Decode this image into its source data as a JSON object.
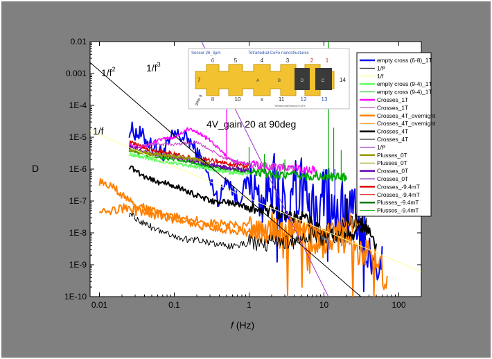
{
  "chart_data": {
    "type": "line",
    "title": "",
    "xlabel_italic": "f",
    "xlabel_rest": " (Hz)",
    "ylabel": "D",
    "xscale": "log",
    "yscale": "log",
    "xlim": [
      0.0075,
      200
    ],
    "ylim": [
      1e-10,
      0.01
    ],
    "x_ticks": [
      0.01,
      0.1,
      1,
      10,
      100
    ],
    "x_tick_labels": [
      "0.01",
      "0.1",
      "1",
      "10",
      "100"
    ],
    "y_ticks": [
      0.01,
      0.001,
      0.0001,
      1e-05,
      1e-06,
      1e-07,
      1e-08,
      1e-09,
      1e-10
    ],
    "y_tick_labels": [
      "0.01",
      "0.001",
      "1E-4",
      "1E-5",
      "1E-6",
      "1E-7",
      "1E-8",
      "1E-9",
      "1E-10"
    ],
    "annotation": "4V_gain 20 at 90deg",
    "guide_labels": {
      "one_over_f": "1/f",
      "one_over_f2_base": "1/f",
      "one_over_f2_exp": "2",
      "one_over_f3_base": "1/f",
      "one_over_f3_exp": "3"
    },
    "guides": [
      {
        "name": "1/f",
        "x": [
          0.0075,
          200
        ],
        "y": [
          1.6e-05,
          6e-10
        ],
        "color": "#ffff99"
      },
      {
        "name": "1/f2",
        "x": [
          0.0075,
          40
        ],
        "y": [
          0.0022,
          6e-11
        ],
        "color": "#000000"
      },
      {
        "name": "1/f3",
        "x": [
          0.2,
          12
        ],
        "y": [
          0.02,
          8e-11
        ],
        "color": "#9933cc"
      }
    ],
    "series": [
      {
        "name": "empty cross (6-8)_1T",
        "color": "#0000ee",
        "width": 2,
        "x": [
          0.025,
          0.035,
          0.05,
          0.07,
          0.1,
          0.13,
          0.16,
          0.2,
          0.25,
          0.3,
          0.4,
          0.5,
          0.7,
          1,
          1.5,
          2,
          3,
          5,
          7,
          10,
          14,
          20,
          30,
          40,
          50,
          60
        ],
        "y": [
          1.8e-05,
          1.2e-05,
          6e-06,
          3e-06,
          1.2e-05,
          1e-05,
          8e-06,
          3e-06,
          1.5e-06,
          4e-07,
          1e-07,
          6e-07,
          1e-07,
          5e-07,
          8e-08,
          4e-07,
          6e-08,
          3e-07,
          5e-08,
          2e-07,
          5e-08,
          8e-08,
          1e-08,
          5e-09,
          1e-09,
          5e-10
        ],
        "noise": 0.55,
        "hf_drop": 2.5,
        "spike_x": [
          10,
          14
        ],
        "spike_y": [
          1e-06,
          1e-06
        ]
      },
      {
        "name": "Crosses_1T",
        "color": "#ff00ff",
        "width": 1.5,
        "x": [
          0.025,
          0.04,
          0.06,
          0.1,
          0.15,
          0.2,
          0.3,
          0.5,
          0.7,
          1,
          2,
          3,
          5,
          8
        ],
        "y": [
          6e-06,
          5e-06,
          8e-06,
          1e-05,
          1.8e-05,
          1.5e-05,
          8e-06,
          2.5e-06,
          1.5e-06,
          1.5e-06,
          1.2e-06,
          1.1e-06,
          1e-06,
          9e-07
        ],
        "noise": 0.12,
        "spike_x": [
          0.5
        ],
        "spike_y": [
          0.001
        ]
      },
      {
        "name": "Crosses_1T (b)",
        "color": "#cc44cc",
        "width": 1,
        "x": [
          0.025,
          0.05,
          0.1,
          0.2,
          0.3,
          0.5,
          1,
          2,
          4
        ],
        "y": [
          5e-06,
          6e-06,
          6e-06,
          7e-06,
          4e-06,
          2e-06,
          1.4e-06,
          1.2e-06,
          1e-06
        ],
        "noise": 0.1
      },
      {
        "name": "Plusses_-9.4mT",
        "color": "#00aa00",
        "width": 2,
        "x": [
          0.025,
          0.05,
          0.1,
          0.2,
          0.3,
          0.5,
          1,
          2,
          3,
          5,
          8,
          10,
          14,
          20
        ],
        "y": [
          4e-06,
          2.5e-06,
          2e-06,
          1.5e-06,
          1.2e-06,
          1e-06,
          8e-07,
          7e-07,
          6.5e-07,
          6e-07,
          6e-07,
          5.5e-07,
          5.5e-07,
          6e-07
        ],
        "noise": 0.12,
        "spike_x": [
          0.7,
          1,
          1.6,
          3,
          11.5,
          13.5,
          17
        ],
        "spike_y": [
          2e-06,
          5e-06,
          3e-06,
          2e-06,
          0.012,
          2e-05,
          4e-06
        ]
      },
      {
        "name": "empty cross (9-4)_1T",
        "color": "#66ff66",
        "width": 1.5,
        "x": [
          0.025,
          0.05,
          0.1,
          0.2,
          0.3,
          0.5,
          1
        ],
        "y": [
          3e-06,
          2e-06,
          1.5e-06,
          1.2e-06,
          1e-06,
          8e-07,
          7e-07
        ],
        "noise": 0.12
      },
      {
        "name": "Crosses_-9.4mT",
        "color": "#dd0000",
        "width": 1.2,
        "x": [
          0.025,
          0.05,
          0.1,
          0.2,
          0.3,
          0.5,
          1
        ],
        "y": [
          7e-06,
          4e-06,
          3e-06,
          2e-06,
          2e-06,
          1.5e-06,
          1.2e-06
        ],
        "noise": 0.15
      },
      {
        "name": "Crosses_0T",
        "color": "#6600aa",
        "width": 1.2,
        "x": [
          0.025,
          0.05,
          0.1,
          0.2,
          0.3,
          0.5,
          1
        ],
        "y": [
          5e-06,
          3e-06,
          2.5e-06,
          1.8e-06,
          1.4e-06,
          1.1e-06,
          9e-07
        ],
        "noise": 0.15
      },
      {
        "name": "Plusses_0T",
        "color": "#999900",
        "width": 1.2,
        "x": [
          0.025,
          0.05,
          0.1,
          0.2,
          0.3
        ],
        "y": [
          4e-06,
          3e-06,
          2.5e-06,
          2e-06,
          1.5e-06
        ],
        "noise": 0.12
      },
      {
        "name": "Crosses_4T",
        "color": "#000000",
        "width": 2,
        "x": [
          0.025,
          0.04,
          0.06,
          0.1,
          0.15,
          0.2,
          0.3,
          0.5,
          0.7,
          1,
          2,
          3,
          5,
          7,
          10,
          15,
          20,
          25,
          30,
          40,
          50
        ],
        "y": [
          1.2e-06,
          6e-07,
          4e-07,
          3e-07,
          2e-07,
          1.5e-07,
          1e-07,
          9e-08,
          8e-08,
          6e-08,
          5e-08,
          4e-08,
          3e-08,
          1.8e-08,
          1.2e-08,
          8e-09,
          8e-09,
          8e-09,
          2e-08,
          1e-08,
          3e-09
        ],
        "noise": 0.18,
        "spike_x": [
          20,
          33
        ],
        "spike_y": [
          1.2e-07,
          1.2e-07
        ]
      },
      {
        "name": "Crosses_4T_overnight",
        "color": "#ff8000",
        "width": 2,
        "x": [
          0.01,
          0.015,
          0.02,
          0.03,
          0.05,
          0.1,
          0.2,
          0.3,
          0.5,
          1,
          2,
          3,
          5,
          10,
          20,
          30,
          40,
          50,
          60,
          70
        ],
        "y": [
          6e-08,
          5e-08,
          6e-08,
          5e-08,
          4e-08,
          3e-08,
          2.5e-08,
          2e-08,
          1.8e-08,
          1.5e-08,
          1.2e-08,
          1e-08,
          8e-09,
          6e-09,
          6e-09,
          3e-09,
          2e-09,
          1e-09,
          5e-10,
          1.2e-10
        ],
        "noise": 0.3,
        "hf_drop": 3
      },
      {
        "name": "Crosses_4T_overnight (b)",
        "color": "#ff8000",
        "width": 2,
        "x": [
          0.01,
          0.015,
          0.02,
          0.03,
          0.05,
          0.1,
          0.2,
          0.3,
          0.5,
          1,
          2,
          3,
          5,
          10,
          20,
          30
        ],
        "y": [
          4e-07,
          3e-07,
          1.5e-07,
          8e-08,
          5e-08,
          2.5e-08,
          1.8e-08,
          1.5e-08,
          1.2e-08,
          1e-08,
          1e-08,
          1.2e-08,
          1.1e-08,
          1e-08,
          2e-08,
          2e-08
        ],
        "noise": 0.25
      },
      {
        "name": "Crosses_4T (thin)",
        "color": "#000000",
        "width": 1,
        "x": [
          0.025,
          0.04,
          0.06,
          0.1,
          0.15,
          0.2,
          0.3,
          0.5,
          0.7,
          1,
          1.5,
          2,
          3,
          5,
          7,
          10,
          15,
          20,
          30,
          40
        ],
        "y": [
          4e-08,
          2e-08,
          1.2e-08,
          8e-09,
          6e-09,
          6e-09,
          5e-09,
          4e-09,
          4e-09,
          5e-09,
          4e-09,
          5e-09,
          5e-09,
          6e-09,
          9e-09,
          7e-09,
          9e-09,
          2.5e-08,
          2e-08,
          1.5e-08
        ],
        "noise": 0.22
      }
    ],
    "legend": [
      {
        "label": "empty cross (6-8)_1T",
        "color": "#0000ee",
        "thick": true
      },
      {
        "label": "1/f²",
        "color": "#000000",
        "thick": false
      },
      {
        "label": "1/f",
        "color": "#ffff66",
        "thick": false
      },
      {
        "label": "empty cross (9-4)_1T",
        "color": "#66ff66",
        "thick": true
      },
      {
        "label": "empty cross (9-4)_1T",
        "color": "#00cc00",
        "thick": false
      },
      {
        "label": "Crosses_1T",
        "color": "#ff00ff",
        "thick": true
      },
      {
        "label": "Crosses_1T",
        "color": "#cc44cc",
        "thick": false
      },
      {
        "label": "Crosses_4T_overnight",
        "color": "#ff8000",
        "thick": true
      },
      {
        "label": "Crosses_4T_overnight",
        "color": "#ff8000",
        "thick": false
      },
      {
        "label": "Crosses_4T",
        "color": "#000000",
        "thick": true
      },
      {
        "label": "Crosses_4T",
        "color": "#000000",
        "thick": false
      },
      {
        "label": "1/f³",
        "color": "#9933cc",
        "thick": false
      },
      {
        "label": "Plusses_0T",
        "color": "#999900",
        "thick": true
      },
      {
        "label": "Plusses_0T",
        "color": "#999900",
        "thick": false
      },
      {
        "label": "Crosses_0T",
        "color": "#6600aa",
        "thick": true
      },
      {
        "label": "Crosses_0T",
        "color": "#6600aa",
        "thick": false
      },
      {
        "label": "Crosses_-9.4mT",
        "color": "#dd0000",
        "thick": true
      },
      {
        "label": "Crosses_-9.4mT",
        "color": "#dd0000",
        "thick": false
      },
      {
        "label": "Plusses_-9.4mT",
        "color": "#007700",
        "thick": true
      },
      {
        "label": "Plusses_-9.4mT",
        "color": "#00aa00",
        "thick": false
      }
    ]
  },
  "inset": {
    "left_title": "Sensor 26_3μm",
    "right_title": "Tetrahedral CoFe nanostructures",
    "top_numbers": [
      "6",
      "5",
      "4",
      "3",
      "2",
      "1"
    ],
    "bottom_numbers": [
      "8",
      "10",
      "x",
      "11",
      "12",
      "13"
    ],
    "left_number": "7",
    "right_number": "14",
    "inner_labels": [
      "A",
      "B",
      "C",
      "D"
    ],
    "gate_label": "gate 9",
    "footer": "Tetrahedral/Sensor/CoFe"
  },
  "colors": {
    "page_bg": "#ffffff",
    "frame_bg": "#808080",
    "plot_bg": "#ffffff",
    "inset_gold": "#f2c230",
    "inset_dark": "#3a3a3a",
    "inset_red": "#cc2222",
    "inset_blue": "#3355aa",
    "inset_purple": "#663399"
  }
}
